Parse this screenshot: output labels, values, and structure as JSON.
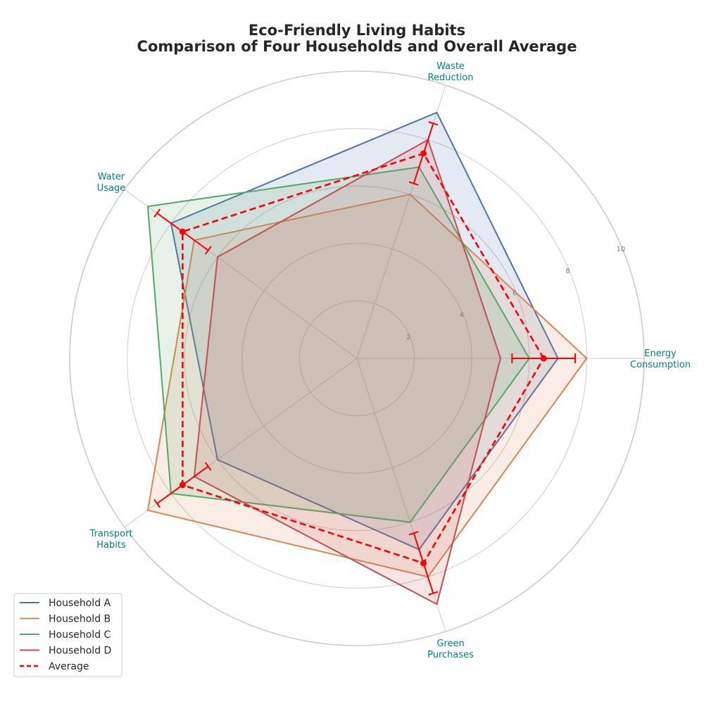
{
  "chart_data": {
    "type": "radar",
    "title": "Eco-Friendly Living Habits",
    "subtitle": "Comparison of Four Households and Overall Average",
    "categories": [
      [
        "Energy",
        "Consumption"
      ],
      [
        "Waste",
        "Reduction"
      ],
      [
        "Water",
        "Usage"
      ],
      [
        "Transport",
        "Habits"
      ],
      [
        "Green",
        "Purchases"
      ]
    ],
    "rlim": [
      0,
      10
    ],
    "rticks": [
      2,
      4,
      6,
      8,
      10
    ],
    "grid": true,
    "legend_position": "lower-left",
    "series": [
      {
        "name": "Household A",
        "values": [
          7,
          9,
          8,
          6,
          7
        ],
        "color": "#4c72b0",
        "fill_opacity": 0.15
      },
      {
        "name": "Household B",
        "values": [
          8,
          6,
          7,
          9,
          8
        ],
        "color": "#dd8452",
        "fill_opacity": 0.15
      },
      {
        "name": "Household C",
        "values": [
          6,
          7,
          9,
          8,
          6
        ],
        "color": "#55a868",
        "fill_opacity": 0.15
      },
      {
        "name": "Household D",
        "values": [
          5,
          8,
          6,
          7,
          9
        ],
        "color": "#c44e52",
        "fill_opacity": 0.15
      }
    ],
    "average": {
      "name": "Average",
      "values": [
        6.5,
        7.5,
        7.5,
        7.5,
        7.5
      ],
      "errors": [
        1.1,
        1.1,
        1.1,
        1.1,
        1.1
      ],
      "color": "#ff0000",
      "style": "dashed"
    }
  }
}
